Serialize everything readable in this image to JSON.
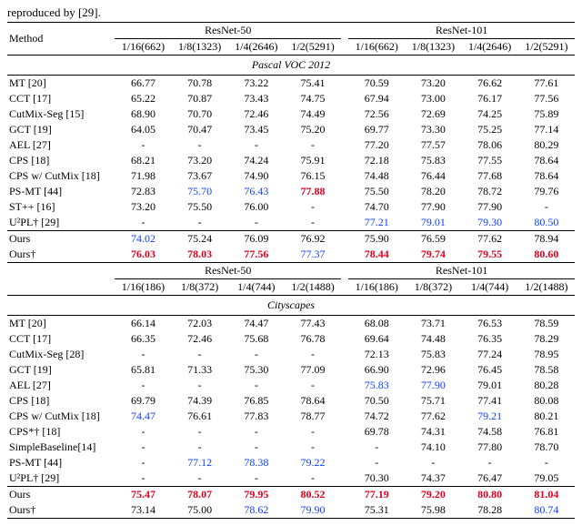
{
  "caption": "reproduced by [29].",
  "colors": {
    "highlight_blue": "#1040ff",
    "highlight_red": "#e00020",
    "rule": "#000000",
    "background": "#ffffff",
    "text": "#000000"
  },
  "font": {
    "family": "Times New Roman",
    "size_pt": 9
  },
  "header": {
    "method": "Method",
    "backbones": [
      "ResNet-50",
      "ResNet-101"
    ]
  },
  "datasets": [
    {
      "name": "Pascal VOC 2012",
      "splits": [
        "1/16(662)",
        "1/8(1323)",
        "1/4(2646)",
        "1/2(5291)"
      ],
      "rows": [
        {
          "method": "MT [20]",
          "r50": [
            "66.77",
            "70.78",
            "73.22",
            "75.41"
          ],
          "r101": [
            "70.59",
            "73.20",
            "76.62",
            "77.61"
          ]
        },
        {
          "method": "CCT [17]",
          "r50": [
            "65.22",
            "70.87",
            "73.43",
            "74.75"
          ],
          "r101": [
            "67.94",
            "73.00",
            "76.17",
            "77.56"
          ]
        },
        {
          "method": "CutMix-Seg [15]",
          "r50": [
            "68.90",
            "70.70",
            "72.46",
            "74.49"
          ],
          "r101": [
            "72.56",
            "72.69",
            "74.25",
            "75.89"
          ]
        },
        {
          "method": "GCT [19]",
          "r50": [
            "64.05",
            "70.47",
            "73.45",
            "75.20"
          ],
          "r101": [
            "69.77",
            "73.30",
            "75.25",
            "77.14"
          ]
        },
        {
          "method": "AEL [27]",
          "r50": [
            "-",
            "-",
            "-",
            "-"
          ],
          "r101": [
            "77.20",
            "77.57",
            "78.06",
            "80.29"
          ]
        },
        {
          "method": "CPS [18]",
          "r50": [
            "68.21",
            "73.20",
            "74.24",
            "75.91"
          ],
          "r101": [
            "72.18",
            "75.83",
            "77.55",
            "78.64"
          ]
        },
        {
          "method": "CPS w/ CutMix [18]",
          "r50": [
            "71.98",
            "73.67",
            "74.90",
            "76.15"
          ],
          "r101": [
            "74.48",
            "76.44",
            "77.68",
            "78.64"
          ]
        },
        {
          "method": "PS-MT [44]",
          "r50": [
            "72.83",
            {
              "v": "75.70",
              "s": "blue"
            },
            {
              "v": "76.43",
              "s": "blue"
            },
            {
              "v": "77.88",
              "s": "red"
            }
          ],
          "r101": [
            "75.50",
            "78.20",
            "78.72",
            "79.76"
          ]
        },
        {
          "method": "ST++ [16]",
          "r50": [
            "73.20",
            "75.50",
            "76.00",
            "-"
          ],
          "r101": [
            "74.70",
            "77.90",
            "77.90",
            "-"
          ]
        },
        {
          "method": "U²PL† [29]",
          "r50": [
            "-",
            "-",
            "-",
            "-"
          ],
          "r101": [
            {
              "v": "77.21",
              "s": "blue"
            },
            {
              "v": "79.01",
              "s": "blue"
            },
            {
              "v": "79.30",
              "s": "blue"
            },
            {
              "v": "80.50",
              "s": "blue"
            }
          ]
        },
        {
          "method": "Ours",
          "r50": [
            {
              "v": "74.02",
              "s": "blue"
            },
            "75.24",
            "76.09",
            "76.92"
          ],
          "r101": [
            "75.90",
            "76.59",
            "77.62",
            "78.94"
          ],
          "rule_above": true
        },
        {
          "method": "Ours†",
          "r50": [
            {
              "v": "76.03",
              "s": "red"
            },
            {
              "v": "78.03",
              "s": "red"
            },
            {
              "v": "77.56",
              "s": "red"
            },
            {
              "v": "77.37",
              "s": "blue"
            }
          ],
          "r101": [
            {
              "v": "78.44",
              "s": "red"
            },
            {
              "v": "79.74",
              "s": "red"
            },
            {
              "v": "79.55",
              "s": "red"
            },
            {
              "v": "80.60",
              "s": "red"
            }
          ]
        }
      ]
    },
    {
      "name": "Cityscapes",
      "splits": [
        "1/16(186)",
        "1/8(372)",
        "1/4(744)",
        "1/2(1488)"
      ],
      "rows": [
        {
          "method": "MT [20]",
          "r50": [
            "66.14",
            "72.03",
            "74.47",
            "77.43"
          ],
          "r101": [
            "68.08",
            "73.71",
            "76.53",
            "78.59"
          ]
        },
        {
          "method": "CCT [17]",
          "r50": [
            "66.35",
            "72.46",
            "75.68",
            "76.78"
          ],
          "r101": [
            "69.64",
            "74.48",
            "76.35",
            "78.29"
          ]
        },
        {
          "method": "CutMix-Seg [28]",
          "r50": [
            "-",
            "-",
            "-",
            "-"
          ],
          "r101": [
            "72.13",
            "75.83",
            "77.24",
            "78.95"
          ]
        },
        {
          "method": "GCT [19]",
          "r50": [
            "65.81",
            "71.33",
            "75.30",
            "77.09"
          ],
          "r101": [
            "66.90",
            "72.96",
            "76.45",
            "78.58"
          ]
        },
        {
          "method": "AEL [27]",
          "r50": [
            "-",
            "-",
            "-",
            "-"
          ],
          "r101": [
            {
              "v": "75.83",
              "s": "blue"
            },
            {
              "v": "77.90",
              "s": "blue"
            },
            "79.01",
            "80.28"
          ]
        },
        {
          "method": "CPS [18]",
          "r50": [
            "69.79",
            "74.39",
            "76.85",
            "78.64"
          ],
          "r101": [
            "70.50",
            "75.71",
            "77.41",
            "80.08"
          ]
        },
        {
          "method": "CPS w/ CutMix [18]",
          "r50": [
            {
              "v": "74.47",
              "s": "blue"
            },
            "76.61",
            "77.83",
            "78.77"
          ],
          "r101": [
            "74.72",
            "77.62",
            {
              "v": "79.21",
              "s": "blue"
            },
            "80.21"
          ]
        },
        {
          "method": "CPS*† [18]",
          "r50": [
            "-",
            "-",
            "-",
            "-"
          ],
          "r101": [
            "69.78",
            "74.31",
            "74.58",
            "76.81"
          ]
        },
        {
          "method": "SimpleBaseline[14]",
          "r50": [
            "-",
            "-",
            "-",
            "-"
          ],
          "r101": [
            "-",
            "74.10",
            "77.80",
            "78.70"
          ]
        },
        {
          "method": "PS-MT [44]",
          "r50": [
            "-",
            {
              "v": "77.12",
              "s": "blue"
            },
            {
              "v": "78.38",
              "s": "blue"
            },
            {
              "v": "79.22",
              "s": "blue"
            }
          ],
          "r101": [
            "-",
            "-",
            "-",
            "-"
          ]
        },
        {
          "method": "U²PL† [29]",
          "r50": [
            "-",
            "-",
            "-",
            "-"
          ],
          "r101": [
            "70.30",
            "74.37",
            "76.47",
            "79.05"
          ]
        },
        {
          "method": "Ours",
          "r50": [
            {
              "v": "75.47",
              "s": "red"
            },
            {
              "v": "78.07",
              "s": "red"
            },
            {
              "v": "79.95",
              "s": "red"
            },
            {
              "v": "80.52",
              "s": "red"
            }
          ],
          "r101": [
            {
              "v": "77.19",
              "s": "red"
            },
            {
              "v": "79.20",
              "s": "red"
            },
            {
              "v": "80.80",
              "s": "red"
            },
            {
              "v": "81.04",
              "s": "red"
            }
          ],
          "rule_above": true
        },
        {
          "method": "Ours†",
          "r50": [
            "73.14",
            "75.00",
            {
              "v": "78.62",
              "s": "blue"
            },
            {
              "v": "79.90",
              "s": "blue"
            }
          ],
          "r101": [
            "75.31",
            "75.98",
            "78.28",
            {
              "v": "80.74",
              "s": "blue"
            }
          ]
        }
      ]
    }
  ]
}
